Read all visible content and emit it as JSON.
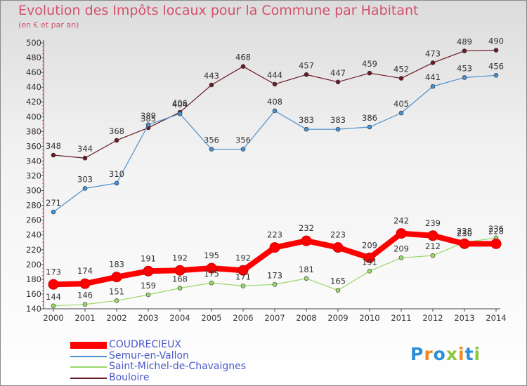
{
  "title": "Evolution des Impôts locaux pour la Commune par Habitant",
  "subtitle": "(en € et par an)",
  "logo": {
    "text": "Proxiti",
    "colors": [
      "#2b8fd8",
      "#f08a1e",
      "#2b8fd8",
      "#8cc63f",
      "#f08a1e",
      "#2b8fd8",
      "#8cc63f"
    ]
  },
  "chart_data": {
    "type": "line",
    "x": [
      "2000",
      "2001",
      "2002",
      "2003",
      "2004",
      "2005",
      "2006",
      "2007",
      "2008",
      "2009",
      "2010",
      "2011",
      "2012",
      "2013",
      "2014"
    ],
    "ylim": [
      140,
      500
    ],
    "yticks": [
      140,
      160,
      180,
      200,
      220,
      240,
      260,
      280,
      300,
      320,
      340,
      360,
      380,
      400,
      420,
      440,
      460,
      480,
      500
    ],
    "grid": false,
    "legend_position": "bottom-left",
    "series": [
      {
        "name": "COUDRECIEUX",
        "color": "#ff0000",
        "values": [
          173,
          174,
          183,
          191,
          192,
          195,
          192,
          223,
          232,
          223,
          209,
          242,
          239,
          228,
          228
        ]
      },
      {
        "name": "Semur-en-Vallon",
        "color": "#4a90d0",
        "values": [
          271,
          303,
          310,
          389,
          404,
          356,
          356,
          408,
          383,
          383,
          386,
          405,
          441,
          453,
          456
        ]
      },
      {
        "name": "Saint-Michel-de-Chavaignes",
        "color": "#9ad86a",
        "values": [
          144,
          146,
          151,
          159,
          168,
          175,
          171,
          173,
          181,
          165,
          191,
          209,
          212,
          230,
          236
        ]
      },
      {
        "name": "Bouloire",
        "color": "#6a1a26",
        "values": [
          348,
          344,
          368,
          385,
          406,
          443,
          468,
          444,
          457,
          447,
          459,
          452,
          473,
          489,
          490
        ]
      }
    ]
  }
}
